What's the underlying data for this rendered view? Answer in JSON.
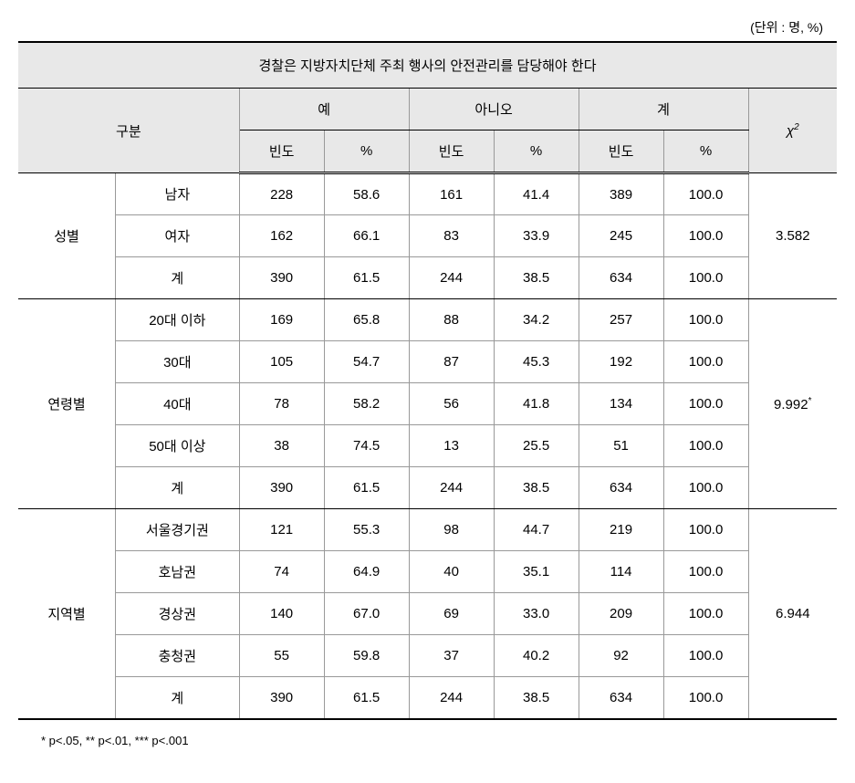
{
  "unit_label": "(단위 : 명, %)",
  "title": "경찰은 지방자치단체 주최 행사의 안전관리를 담당해야 한다",
  "headers": {
    "category": "구분",
    "yes": "예",
    "no": "아니오",
    "total": "계",
    "chi": "χ",
    "chi_sup": "2",
    "freq": "빈도",
    "pct": "%"
  },
  "sections": [
    {
      "group": "성별",
      "chi": "3.582",
      "chi_sup": "",
      "rows": [
        {
          "label": "남자",
          "yes_f": "228",
          "yes_p": "58.6",
          "no_f": "161",
          "no_p": "41.4",
          "tot_f": "389",
          "tot_p": "100.0"
        },
        {
          "label": "여자",
          "yes_f": "162",
          "yes_p": "66.1",
          "no_f": "83",
          "no_p": "33.9",
          "tot_f": "245",
          "tot_p": "100.0"
        },
        {
          "label": "계",
          "yes_f": "390",
          "yes_p": "61.5",
          "no_f": "244",
          "no_p": "38.5",
          "tot_f": "634",
          "tot_p": "100.0"
        }
      ]
    },
    {
      "group": "연령별",
      "chi": "9.992",
      "chi_sup": "*",
      "rows": [
        {
          "label": "20대 이하",
          "yes_f": "169",
          "yes_p": "65.8",
          "no_f": "88",
          "no_p": "34.2",
          "tot_f": "257",
          "tot_p": "100.0"
        },
        {
          "label": "30대",
          "yes_f": "105",
          "yes_p": "54.7",
          "no_f": "87",
          "no_p": "45.3",
          "tot_f": "192",
          "tot_p": "100.0"
        },
        {
          "label": "40대",
          "yes_f": "78",
          "yes_p": "58.2",
          "no_f": "56",
          "no_p": "41.8",
          "tot_f": "134",
          "tot_p": "100.0"
        },
        {
          "label": "50대 이상",
          "yes_f": "38",
          "yes_p": "74.5",
          "no_f": "13",
          "no_p": "25.5",
          "tot_f": "51",
          "tot_p": "100.0"
        },
        {
          "label": "계",
          "yes_f": "390",
          "yes_p": "61.5",
          "no_f": "244",
          "no_p": "38.5",
          "tot_f": "634",
          "tot_p": "100.0"
        }
      ]
    },
    {
      "group": "지역별",
      "chi": "6.944",
      "chi_sup": "",
      "rows": [
        {
          "label": "서울경기권",
          "yes_f": "121",
          "yes_p": "55.3",
          "no_f": "98",
          "no_p": "44.7",
          "tot_f": "219",
          "tot_p": "100.0"
        },
        {
          "label": "호남권",
          "yes_f": "74",
          "yes_p": "64.9",
          "no_f": "40",
          "no_p": "35.1",
          "tot_f": "114",
          "tot_p": "100.0"
        },
        {
          "label": "경상권",
          "yes_f": "140",
          "yes_p": "67.0",
          "no_f": "69",
          "no_p": "33.0",
          "tot_f": "209",
          "tot_p": "100.0"
        },
        {
          "label": "충청권",
          "yes_f": "55",
          "yes_p": "59.8",
          "no_f": "37",
          "no_p": "40.2",
          "tot_f": "92",
          "tot_p": "100.0"
        },
        {
          "label": "계",
          "yes_f": "390",
          "yes_p": "61.5",
          "no_f": "244",
          "no_p": "38.5",
          "tot_f": "634",
          "tot_p": "100.0"
        }
      ]
    }
  ],
  "footnote": "* p<.05, ** p<.01, *** p<.001",
  "styling": {
    "background_color": "#ffffff",
    "header_bg": "#e8e8e8",
    "border_heavy": "#000000",
    "border_light": "#999999",
    "font_size": 15,
    "unit_font_size": 14,
    "footnote_font_size": 13,
    "col_widths": {
      "group": "11%",
      "label": "14%",
      "data": "9.6%",
      "chi": "10%"
    }
  }
}
